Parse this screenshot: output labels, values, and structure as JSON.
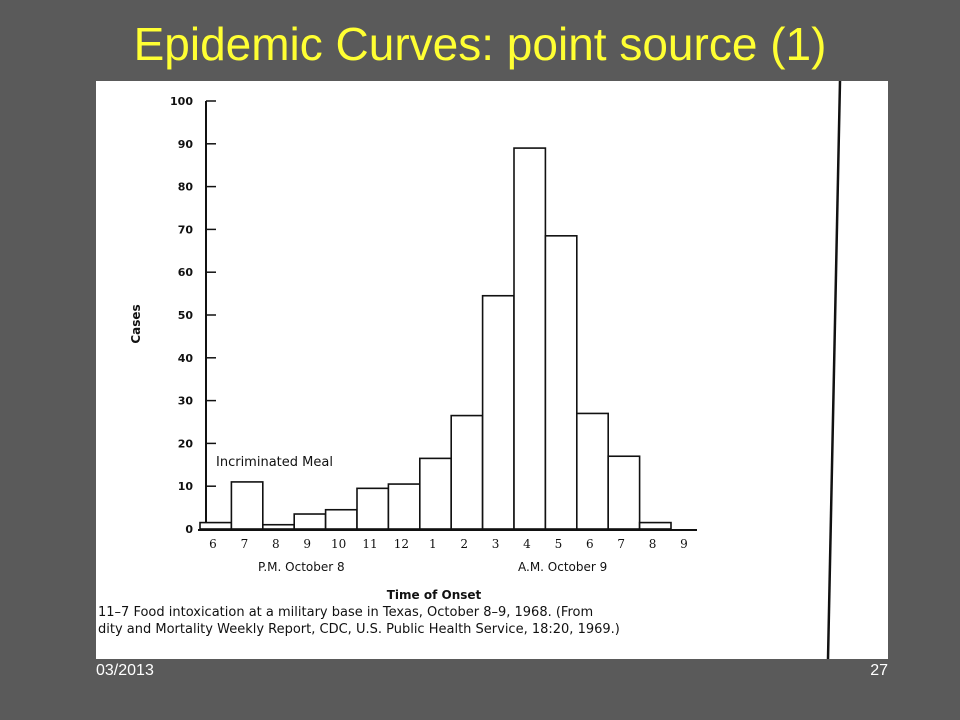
{
  "slide": {
    "title": "Epidemic Curves: point source (1)",
    "footer_date": "03/2013",
    "page_number": "27"
  },
  "chart_data": {
    "type": "bar",
    "ylabel": "Cases",
    "xlabel": "Time of Onset",
    "ylim": [
      0,
      100
    ],
    "yticks": [
      0,
      10,
      20,
      30,
      40,
      50,
      60,
      70,
      80,
      90,
      100
    ],
    "xtick_labels": [
      "6",
      "7",
      "8",
      "9",
      "10",
      "11",
      "12",
      "1",
      "2",
      "3",
      "4",
      "5",
      "6",
      "7",
      "8",
      "9"
    ],
    "values": [
      1.5,
      11,
      1,
      3.5,
      4.5,
      9.5,
      10.5,
      16.5,
      26.5,
      54.5,
      89,
      68.5,
      27,
      17,
      1.5
    ],
    "period_labels": [
      "P.M. October 8",
      "A.M. October 9"
    ],
    "annotation": "Incriminated Meal",
    "caption_line1": "11–7   Food intoxication at a military base in Texas, October 8–9, 1968. (From",
    "caption_line2": "dity and Mortality Weekly Report, CDC, U.S. Public Health Service, 18:20, 1969.)"
  }
}
